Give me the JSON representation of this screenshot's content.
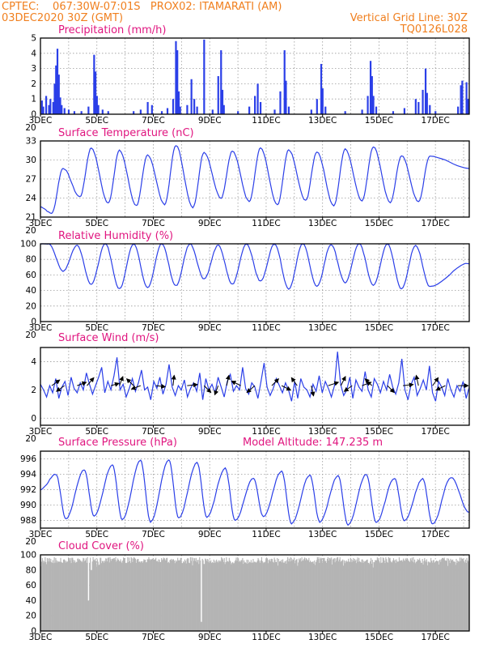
{
  "header": {
    "line1_left": "CPTEC:    067:30W-07:01S   PROX02: ITAMARATI (AM)",
    "line2_left": "03DEC2020 30Z (GMT)",
    "line2_right": "Vertical Grid Line: 30Z",
    "line3_right": "TQ0126L028"
  },
  "colors": {
    "series": "#2b3fe8",
    "cloud": "#b4b4b4",
    "header": "#f07f1e",
    "title": "#e0157f"
  },
  "x_ticks": [
    "3DEC",
    "5DEC",
    "7DEC",
    "9DEC",
    "11DEC",
    "13DEC",
    "15DEC",
    "17DEC"
  ],
  "x_extra_label": "20",
  "chart_data": [
    {
      "id": "precip",
      "type": "bar",
      "title": "Precipitation (mm/h)",
      "ylim": [
        0,
        5
      ],
      "yticks": [
        "0",
        "1",
        "2",
        "3",
        "4",
        "5"
      ],
      "xlim": [
        3,
        18.2
      ],
      "events": [
        [
          3.05,
          0.9
        ],
        [
          3.1,
          0.5
        ],
        [
          3.2,
          1.2
        ],
        [
          3.3,
          0.6
        ],
        [
          3.35,
          1.0
        ],
        [
          3.45,
          0.8
        ],
        [
          3.5,
          2.0
        ],
        [
          3.55,
          3.2
        ],
        [
          3.6,
          4.3
        ],
        [
          3.65,
          2.6
        ],
        [
          3.7,
          1.1
        ],
        [
          3.75,
          0.6
        ],
        [
          3.85,
          0.4
        ],
        [
          4.0,
          0.3
        ],
        [
          4.2,
          0.2
        ],
        [
          4.45,
          0.2
        ],
        [
          4.7,
          0.5
        ],
        [
          4.9,
          3.9
        ],
        [
          4.95,
          2.8
        ],
        [
          5.0,
          1.2
        ],
        [
          5.05,
          0.6
        ],
        [
          5.2,
          0.3
        ],
        [
          5.4,
          0.2
        ],
        [
          6.3,
          0.2
        ],
        [
          6.55,
          0.3
        ],
        [
          6.8,
          0.8
        ],
        [
          6.95,
          0.6
        ],
        [
          7.3,
          0.2
        ],
        [
          7.5,
          0.4
        ],
        [
          7.7,
          1.0
        ],
        [
          7.8,
          4.8
        ],
        [
          7.85,
          4.2
        ],
        [
          7.9,
          1.5
        ],
        [
          7.95,
          0.5
        ],
        [
          8.2,
          0.6
        ],
        [
          8.35,
          2.3
        ],
        [
          8.45,
          1.0
        ],
        [
          8.55,
          0.5
        ],
        [
          8.8,
          4.9
        ],
        [
          9.1,
          0.3
        ],
        [
          9.3,
          2.5
        ],
        [
          9.4,
          4.2
        ],
        [
          9.45,
          1.6
        ],
        [
          9.5,
          0.6
        ],
        [
          10.0,
          0.2
        ],
        [
          10.4,
          0.5
        ],
        [
          10.6,
          1.2
        ],
        [
          10.7,
          2.0
        ],
        [
          10.8,
          0.8
        ],
        [
          11.3,
          0.3
        ],
        [
          11.5,
          1.5
        ],
        [
          11.65,
          4.2
        ],
        [
          11.7,
          2.2
        ],
        [
          11.8,
          0.5
        ],
        [
          12.6,
          0.3
        ],
        [
          12.8,
          1.0
        ],
        [
          12.95,
          3.3
        ],
        [
          13.0,
          1.7
        ],
        [
          13.1,
          0.5
        ],
        [
          13.8,
          0.2
        ],
        [
          14.4,
          0.3
        ],
        [
          14.6,
          1.2
        ],
        [
          14.7,
          3.5
        ],
        [
          14.75,
          2.5
        ],
        [
          14.8,
          1.2
        ],
        [
          14.9,
          0.5
        ],
        [
          15.5,
          0.2
        ],
        [
          15.9,
          0.4
        ],
        [
          16.3,
          1.0
        ],
        [
          16.4,
          0.8
        ],
        [
          16.55,
          1.6
        ],
        [
          16.65,
          3.0
        ],
        [
          16.7,
          1.4
        ],
        [
          16.8,
          0.6
        ],
        [
          17.0,
          0.2
        ],
        [
          17.8,
          0.5
        ],
        [
          17.9,
          1.9
        ],
        [
          17.95,
          2.2
        ],
        [
          18.1,
          2.1
        ],
        [
          18.15,
          1.0
        ]
      ]
    },
    {
      "id": "temp",
      "type": "line",
      "title": "Surface Temperature (nC)",
      "ylim": [
        21,
        33
      ],
      "yticks": [
        "21",
        "24",
        "27",
        "30",
        "33"
      ],
      "xlim": [
        3,
        18.2
      ],
      "peaks": [
        28.7,
        31.9,
        31.5,
        30.8,
        32.3,
        31.2,
        31.4,
        31.9,
        31.6,
        31.3,
        31.7,
        32.1,
        30.7,
        30.6
      ],
      "troughs": [
        21.6,
        24.2,
        23.2,
        22.8,
        23.0,
        22.5,
        24.0,
        23.5,
        22.9,
        23.6,
        22.8,
        23.6,
        23.3,
        23.4
      ],
      "first_value": 22.6,
      "last_value": 28.7
    },
    {
      "id": "rh",
      "type": "line",
      "title": "Relative Humidity (%)",
      "ylim": [
        0,
        100
      ],
      "yticks": [
        "0",
        "20",
        "40",
        "60",
        "80",
        "100"
      ],
      "xlim": [
        3,
        18.2
      ],
      "peaks": [
        100,
        98,
        100,
        100,
        100,
        100,
        98,
        100,
        100,
        100,
        99,
        100,
        100,
        98
      ],
      "troughs": [
        65,
        48,
        42,
        44,
        46,
        55,
        48,
        52,
        42,
        45,
        50,
        47,
        42,
        45
      ],
      "first_value": 100,
      "last_value": 75
    },
    {
      "id": "wind",
      "type": "line",
      "title": "Surface Wind (m/s)",
      "ylim": [
        -0.5,
        5
      ],
      "yticks": [
        "0",
        "2",
        "4"
      ],
      "xlim": [
        3,
        18.2
      ],
      "values": [
        2.4,
        2.0,
        1.5,
        2.3,
        1.8,
        2.8,
        1.4,
        2.2,
        2.6,
        1.6,
        2.9,
        2.1,
        1.8,
        2.5,
        2.0,
        3.2,
        2.4,
        1.7,
        2.3,
        2.9,
        3.6,
        1.8,
        2.6,
        2.0,
        3.0,
        4.3,
        2.0,
        2.4,
        1.5,
        2.1,
        2.8,
        1.9,
        2.5,
        3.4,
        2.0,
        2.2,
        1.3,
        2.6,
        2.1,
        2.9,
        1.7,
        2.4,
        3.8,
        2.2,
        1.6,
        2.3,
        2.0,
        2.7,
        1.5,
        2.1,
        2.5,
        1.9,
        3.2,
        1.3,
        2.8,
        2.0,
        2.4,
        1.8,
        2.9,
        2.2,
        1.5,
        2.6,
        3.1,
        1.9,
        2.3,
        2.0,
        3.6,
        2.1,
        1.7,
        2.5,
        2.2,
        1.4,
        2.6,
        3.9,
        2.2,
        1.6,
        2.1,
        2.8,
        2.3,
        1.8,
        2.5,
        2.0,
        1.2,
        2.6,
        1.4,
        2.8,
        2.2,
        2.0,
        1.5,
        2.4,
        1.9,
        3.0,
        1.8,
        2.6,
        2.1,
        1.5,
        2.3,
        4.7,
        2.4,
        1.6,
        2.0,
        2.9,
        1.4,
        2.7,
        2.2,
        1.9,
        3.3,
        2.0,
        1.5,
        2.8,
        2.4,
        1.8,
        2.6,
        2.0,
        3.1,
        2.2,
        1.7,
        2.5,
        4.2,
        2.0,
        1.3,
        2.4,
        2.9,
        1.6,
        2.1,
        2.7,
        2.0,
        3.7,
        1.8,
        1.2,
        2.6,
        2.2,
        1.6,
        2.8,
        2.0,
        1.5,
        2.3,
        1.9,
        2.6,
        1.4,
        2.2
      ],
      "vectors": [
        [
          3.4,
          0.7,
          0.5
        ],
        [
          3.85,
          -0.7,
          -0.5
        ],
        [
          4.3,
          0.8,
          0.3
        ],
        [
          4.65,
          0.6,
          0.7
        ],
        [
          5.5,
          0.7,
          0.2
        ],
        [
          5.8,
          0.3,
          0.8
        ],
        [
          6.3,
          -0.6,
          0.6
        ],
        [
          6.55,
          -0.8,
          -0.3
        ],
        [
          7.1,
          0.8,
          -0.1
        ],
        [
          7.7,
          0.1,
          0.9
        ],
        [
          8.2,
          0.9,
          0.1
        ],
        [
          8.8,
          0.6,
          -0.6
        ],
        [
          9.3,
          -0.3,
          -0.8
        ],
        [
          9.6,
          0.2,
          0.9
        ],
        [
          10.1,
          -0.8,
          0.4
        ],
        [
          10.6,
          -0.7,
          -0.6
        ],
        [
          11.2,
          0.6,
          0.6
        ],
        [
          11.55,
          0.8,
          -0.4
        ],
        [
          12.1,
          -0.5,
          0.7
        ],
        [
          12.6,
          0.2,
          -0.9
        ],
        [
          13.2,
          0.9,
          0.3
        ],
        [
          13.65,
          0.4,
          0.8
        ],
        [
          14.05,
          -0.7,
          -0.5
        ],
        [
          14.4,
          0.8,
          0.3
        ],
        [
          14.75,
          -0.6,
          0.6
        ],
        [
          15.3,
          0.6,
          -0.6
        ],
        [
          15.85,
          0.9,
          0.1
        ],
        [
          16.4,
          -0.2,
          0.9
        ],
        [
          16.9,
          0.5,
          0.7
        ],
        [
          17.35,
          -0.8,
          -0.4
        ],
        [
          17.8,
          0.9,
          0.0
        ]
      ]
    },
    {
      "id": "pres",
      "type": "line",
      "title": "Surface Pressure (hPa)",
      "subtitle": "Model Altitude: 147.235 m",
      "ylim": [
        987,
        997
      ],
      "yticks": [
        "988",
        "990",
        "992",
        "994",
        "996"
      ],
      "xlim": [
        3,
        18.2
      ],
      "peaks": [
        994.0,
        994.6,
        995.2,
        995.8,
        995.9,
        995.5,
        994.8,
        993.5,
        994.4,
        993.9,
        993.8,
        994.0,
        993.5,
        993.4,
        993.6
      ],
      "troughs": [
        988.2,
        988.6,
        988.1,
        987.8,
        988.3,
        988.4,
        988.0,
        988.5,
        987.6,
        987.8,
        987.4,
        987.7,
        988.0,
        987.5
      ],
      "first_value": 992.0,
      "last_value": 989.0
    },
    {
      "id": "cloud",
      "type": "area",
      "title": "Cloud Cover (%)",
      "ylim": [
        0,
        100
      ],
      "yticks": [
        "0",
        "20",
        "40",
        "60",
        "80",
        "100"
      ],
      "xlim": [
        3,
        18.2
      ],
      "base_level": 97,
      "dips": [
        [
          4.7,
          40
        ],
        [
          4.8,
          80
        ],
        [
          8.7,
          12
        ],
        [
          8.8,
          88
        ],
        [
          13.1,
          92
        ],
        [
          14.4,
          94
        ],
        [
          16.8,
          90
        ]
      ]
    }
  ]
}
